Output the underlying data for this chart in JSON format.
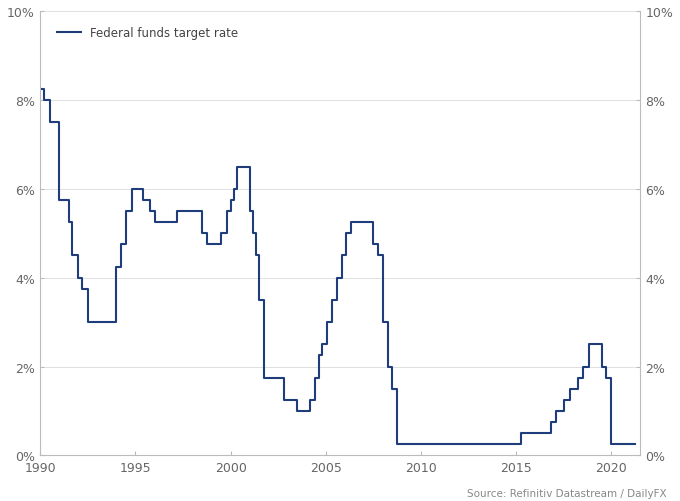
{
  "legend_label": "Federal funds target rate",
  "source_text": "Source: Refinitiv Datastream / DailyFX",
  "line_color": "#1f3d7a",
  "line_width": 1.5,
  "background_color": "#ffffff",
  "xlim": [
    1990,
    2021.5
  ],
  "ylim": [
    0,
    0.1
  ],
  "yticks": [
    0,
    0.02,
    0.04,
    0.06,
    0.08,
    0.1
  ],
  "ytick_labels": [
    "0%",
    "2%",
    "4%",
    "6%",
    "8%",
    "10%"
  ],
  "xticks": [
    1990,
    1995,
    2000,
    2005,
    2010,
    2015,
    2020
  ],
  "data": [
    [
      1990.0,
      0.0825
    ],
    [
      1990.17,
      0.0825
    ],
    [
      1990.17,
      0.08
    ],
    [
      1990.5,
      0.08
    ],
    [
      1990.5,
      0.075
    ],
    [
      1991.0,
      0.075
    ],
    [
      1991.0,
      0.0575
    ],
    [
      1991.5,
      0.0575
    ],
    [
      1991.5,
      0.0525
    ],
    [
      1991.67,
      0.0525
    ],
    [
      1991.67,
      0.045
    ],
    [
      1992.0,
      0.045
    ],
    [
      1992.0,
      0.04
    ],
    [
      1992.17,
      0.04
    ],
    [
      1992.17,
      0.0375
    ],
    [
      1992.5,
      0.0375
    ],
    [
      1992.5,
      0.03
    ],
    [
      1993.83,
      0.03
    ],
    [
      1993.83,
      0.03
    ],
    [
      1994.0,
      0.03
    ],
    [
      1994.0,
      0.0425
    ],
    [
      1994.25,
      0.0425
    ],
    [
      1994.25,
      0.0475
    ],
    [
      1994.5,
      0.0475
    ],
    [
      1994.5,
      0.055
    ],
    [
      1994.83,
      0.055
    ],
    [
      1994.83,
      0.06
    ],
    [
      1995.0,
      0.06
    ],
    [
      1995.0,
      0.06
    ],
    [
      1995.42,
      0.06
    ],
    [
      1995.42,
      0.0575
    ],
    [
      1995.75,
      0.0575
    ],
    [
      1995.75,
      0.055
    ],
    [
      1996.0,
      0.055
    ],
    [
      1996.0,
      0.0525
    ],
    [
      1997.17,
      0.0525
    ],
    [
      1997.17,
      0.055
    ],
    [
      1998.5,
      0.055
    ],
    [
      1998.5,
      0.05
    ],
    [
      1998.75,
      0.05
    ],
    [
      1998.75,
      0.0475
    ],
    [
      1999.0,
      0.0475
    ],
    [
      1999.5,
      0.0475
    ],
    [
      1999.5,
      0.05
    ],
    [
      1999.83,
      0.05
    ],
    [
      1999.83,
      0.055
    ],
    [
      2000.0,
      0.055
    ],
    [
      2000.0,
      0.0575
    ],
    [
      2000.17,
      0.0575
    ],
    [
      2000.17,
      0.06
    ],
    [
      2000.33,
      0.06
    ],
    [
      2000.33,
      0.065
    ],
    [
      2000.5,
      0.065
    ],
    [
      2001.0,
      0.065
    ],
    [
      2001.0,
      0.055
    ],
    [
      2001.17,
      0.055
    ],
    [
      2001.17,
      0.05
    ],
    [
      2001.33,
      0.05
    ],
    [
      2001.33,
      0.045
    ],
    [
      2001.5,
      0.045
    ],
    [
      2001.5,
      0.035
    ],
    [
      2001.75,
      0.035
    ],
    [
      2001.75,
      0.0175
    ],
    [
      2002.83,
      0.0175
    ],
    [
      2002.83,
      0.0125
    ],
    [
      2003.5,
      0.0125
    ],
    [
      2003.5,
      0.01
    ],
    [
      2004.17,
      0.01
    ],
    [
      2004.17,
      0.0125
    ],
    [
      2004.42,
      0.0125
    ],
    [
      2004.42,
      0.0175
    ],
    [
      2004.67,
      0.0175
    ],
    [
      2004.67,
      0.0225
    ],
    [
      2004.83,
      0.0225
    ],
    [
      2004.83,
      0.025
    ],
    [
      2005.08,
      0.025
    ],
    [
      2005.08,
      0.03
    ],
    [
      2005.33,
      0.03
    ],
    [
      2005.33,
      0.035
    ],
    [
      2005.58,
      0.035
    ],
    [
      2005.58,
      0.04
    ],
    [
      2005.83,
      0.04
    ],
    [
      2005.83,
      0.045
    ],
    [
      2006.08,
      0.045
    ],
    [
      2006.08,
      0.05
    ],
    [
      2006.33,
      0.05
    ],
    [
      2006.33,
      0.0525
    ],
    [
      2007.5,
      0.0525
    ],
    [
      2007.5,
      0.0475
    ],
    [
      2007.75,
      0.0475
    ],
    [
      2007.75,
      0.045
    ],
    [
      2008.0,
      0.045
    ],
    [
      2008.0,
      0.03
    ],
    [
      2008.25,
      0.03
    ],
    [
      2008.25,
      0.02
    ],
    [
      2008.5,
      0.02
    ],
    [
      2008.5,
      0.015
    ],
    [
      2008.75,
      0.015
    ],
    [
      2008.75,
      0.0025
    ],
    [
      2015.25,
      0.0025
    ],
    [
      2015.25,
      0.005
    ],
    [
      2016.83,
      0.005
    ],
    [
      2016.83,
      0.0075
    ],
    [
      2017.08,
      0.0075
    ],
    [
      2017.08,
      0.01
    ],
    [
      2017.5,
      0.01
    ],
    [
      2017.5,
      0.0125
    ],
    [
      2017.83,
      0.0125
    ],
    [
      2017.83,
      0.015
    ],
    [
      2018.25,
      0.015
    ],
    [
      2018.25,
      0.0175
    ],
    [
      2018.5,
      0.0175
    ],
    [
      2018.5,
      0.02
    ],
    [
      2018.83,
      0.02
    ],
    [
      2018.83,
      0.025
    ],
    [
      2019.5,
      0.025
    ],
    [
      2019.5,
      0.02
    ],
    [
      2019.75,
      0.02
    ],
    [
      2019.75,
      0.0175
    ],
    [
      2020.0,
      0.0175
    ],
    [
      2020.0,
      0.0025
    ],
    [
      2021.25,
      0.0025
    ]
  ]
}
